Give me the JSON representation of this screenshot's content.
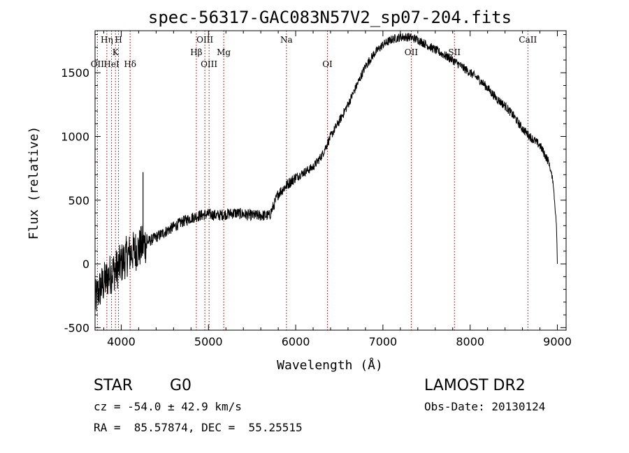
{
  "chart_data": {
    "type": "line",
    "title": "spec-56317-GAC083N57V2_sp07-204.fits",
    "xlabel": "Wavelength (Å)",
    "ylabel": "Flux (relative)",
    "xlim": [
      3700,
      9100
    ],
    "ylim": [
      -520,
      1830
    ],
    "x_ticks": [
      4000,
      5000,
      6000,
      7000,
      8000,
      9000
    ],
    "y_ticks": [
      -500,
      0,
      500,
      1000,
      1500
    ],
    "grid": false,
    "series": [
      {
        "x": [
          3700,
          3750,
          3800,
          3850,
          3900,
          3950,
          4000,
          4050,
          4100,
          4150,
          4200,
          4250,
          4300,
          4400,
          4500,
          4600,
          4700,
          4800,
          4900,
          5000,
          5100,
          5200,
          5300,
          5400,
          5500,
          5600,
          5700,
          5750,
          5800,
          5900,
          6000,
          6100,
          6200,
          6300,
          6400,
          6500,
          6600,
          6700,
          6800,
          6900,
          7000,
          7100,
          7200,
          7300,
          7400,
          7500,
          7600,
          7700,
          7800,
          7900,
          8000,
          8100,
          8200,
          8300,
          8400,
          8500,
          8600,
          8700,
          8800,
          8900,
          8950,
          8990,
          9000
        ],
        "y": [
          -300,
          -200,
          -150,
          -100,
          -60,
          -40,
          0,
          50,
          80,
          100,
          120,
          150,
          170,
          210,
          250,
          290,
          330,
          360,
          380,
          390,
          380,
          390,
          400,
          390,
          380,
          380,
          380,
          460,
          550,
          620,
          680,
          720,
          760,
          850,
          1000,
          1120,
          1250,
          1400,
          1550,
          1650,
          1720,
          1760,
          1780,
          1780,
          1760,
          1720,
          1680,
          1640,
          1600,
          1550,
          1500,
          1450,
          1380,
          1300,
          1240,
          1160,
          1060,
          990,
          930,
          800,
          650,
          300,
          0
        ]
      }
    ],
    "spike": {
      "x": 4250,
      "y": 720
    },
    "lines": [
      {
        "label": "OII",
        "x": 3727,
        "row": 3
      },
      {
        "label": "Hη",
        "x": 3835,
        "row": 1
      },
      {
        "label": "HeI",
        "x": 3889,
        "row": 3
      },
      {
        "label": "K",
        "x": 3934,
        "row": 2
      },
      {
        "label": "H",
        "x": 3969,
        "row": 1
      },
      {
        "label": "Hδ",
        "x": 4102,
        "row": 3
      },
      {
        "label": "Hβ",
        "x": 4861,
        "row": 2
      },
      {
        "label": "OIII",
        "x": 4959,
        "row": 1
      },
      {
        "label": "OIII",
        "x": 5007,
        "row": 3
      },
      {
        "label": "Mg",
        "x": 5175,
        "row": 2
      },
      {
        "label": "Na",
        "x": 5894,
        "row": 1
      },
      {
        "label": "OI",
        "x": 6364,
        "row": 3
      },
      {
        "label": "OII",
        "x": 7325,
        "row": 2
      },
      {
        "label": "SII",
        "x": 7820,
        "row": 2
      },
      {
        "label": "CaII",
        "x": 8662,
        "row": 1
      }
    ]
  },
  "info": {
    "class_label": "STAR",
    "subclass_label": "G0",
    "survey_label": "LAMOST DR2",
    "redshift_text": "cz = -54.0 ± 42.9 km/s",
    "obs_date_text": "Obs-Date: 20130124",
    "coords_text": "RA =  85.57874, DEC =  55.25515"
  },
  "colors": {
    "spectrum": "#000000",
    "line_marker": "#8b0000",
    "background": "#ffffff"
  }
}
